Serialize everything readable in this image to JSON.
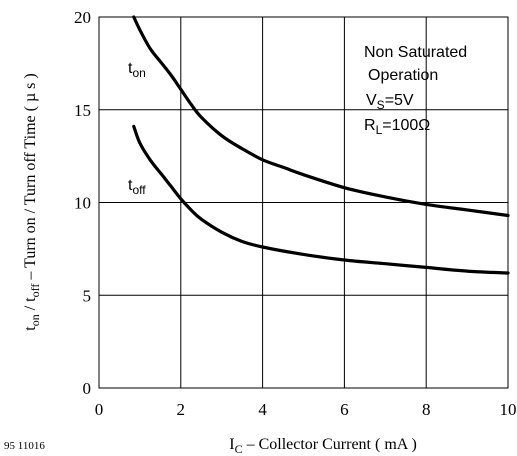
{
  "figure_code": "95 11016",
  "chart_data": {
    "type": "line",
    "xlabel": {
      "main": "I",
      "sub": "C",
      "rest": " – Collector Current ( mA )"
    },
    "ylabel": {
      "t1": "t",
      "t1_sub": "on",
      "slash": " / t",
      "t2_sub": "off",
      "rest": "  – Turn on / Turn off Time ( µ s )"
    },
    "xlim": [
      0,
      10
    ],
    "ylim": [
      0,
      20
    ],
    "x_ticks": [
      0,
      2,
      4,
      6,
      8,
      10
    ],
    "y_ticks": [
      0,
      5,
      10,
      15,
      20
    ],
    "x_tick_labels": [
      "0",
      "2",
      "4",
      "6",
      "8",
      "10"
    ],
    "y_tick_labels": [
      "0",
      "5",
      "10",
      "15",
      "20"
    ],
    "grid": true,
    "series": [
      {
        "name": "t_on",
        "label_main": "t",
        "label_sub": "on",
        "color": "#000000",
        "x": [
          0.85,
          1.0,
          1.25,
          1.5,
          1.75,
          2.0,
          2.25,
          2.5,
          3.0,
          3.5,
          4.0,
          4.5,
          5.0,
          6.0,
          7.0,
          8.0,
          9.0,
          10.0
        ],
        "y": [
          20.0,
          19.3,
          18.3,
          17.6,
          16.9,
          16.1,
          15.3,
          14.6,
          13.6,
          12.9,
          12.3,
          11.9,
          11.5,
          10.8,
          10.3,
          9.9,
          9.6,
          9.3
        ]
      },
      {
        "name": "t_off",
        "label_main": "t",
        "label_sub": "off",
        "color": "#000000",
        "x": [
          0.85,
          1.0,
          1.25,
          1.5,
          1.75,
          2.0,
          2.25,
          2.5,
          3.0,
          3.5,
          4.0,
          5.0,
          6.0,
          7.0,
          8.0,
          9.0,
          10.0
        ],
        "y": [
          14.1,
          13.2,
          12.3,
          11.6,
          10.9,
          10.2,
          9.6,
          9.1,
          8.4,
          7.9,
          7.6,
          7.2,
          6.9,
          6.7,
          6.5,
          6.3,
          6.2
        ]
      }
    ],
    "annotations": [
      {
        "type": "text",
        "text": "Non Saturated"
      },
      {
        "type": "text",
        "text": "Operation"
      },
      {
        "type": "sub",
        "main": "V",
        "sub": "S",
        "rest": "=5V"
      },
      {
        "type": "sub",
        "main": "R",
        "sub": "L",
        "rest": "=100Ω"
      }
    ]
  }
}
